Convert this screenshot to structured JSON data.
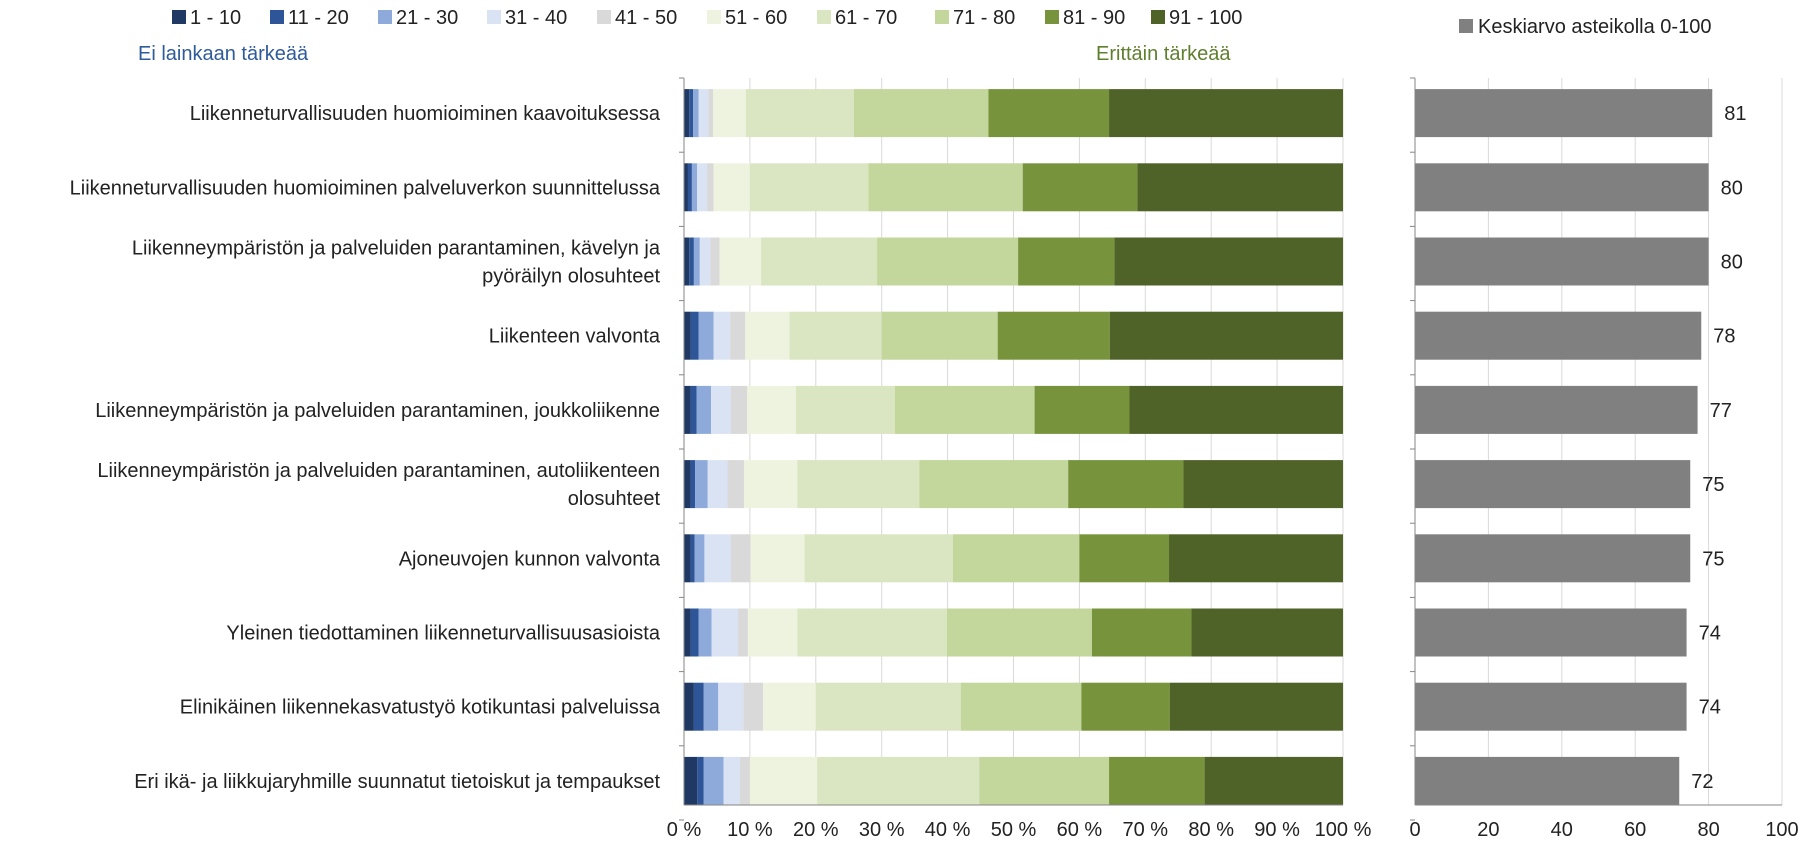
{
  "chart_data": [
    {
      "type": "bar",
      "orientation": "horizontal",
      "stacked": true,
      "percent": true,
      "categories": [
        "Liikenneturvallisuuden huomioiminen kaavoituksessa",
        "Liikenneturvallisuuden huomioiminen palveluverkon suunnittelussa",
        "Liikenneympäristön ja palveluiden parantaminen, kävelyn ja pyöräilyn olosuhteet",
        "Liikenteen valvonta",
        "Liikenneympäristön ja palveluiden parantaminen, joukkoliikenne",
        "Liikenneympäristön ja palveluiden parantaminen, autoliikenteen olosuhteet",
        "Ajoneuvojen kunnon valvonta",
        "Yleinen tiedottaminen liikenneturvallisuusasioista",
        "Elinikäinen liikennekasvatustyö kotikuntasi palveluissa",
        "Eri ikä- ja liikkujaryhmille suunnatut tietoiskut ja tempaukset"
      ],
      "category_lines": [
        [
          "Liikenneturvallisuuden huomioiminen kaavoituksessa"
        ],
        [
          "Liikenneturvallisuuden huomioiminen palveluverkon suunnittelussa"
        ],
        [
          "Liikenneympäristön ja palveluiden parantaminen, kävelyn ja",
          "pyöräilyn olosuhteet"
        ],
        [
          "Liikenteen valvonta"
        ],
        [
          "Liikenneympäristön ja palveluiden parantaminen, joukkoliikenne"
        ],
        [
          "Liikenneympäristön ja palveluiden parantaminen, autoliikenteen",
          "olosuhteet"
        ],
        [
          "Ajoneuvojen kunnon valvonta"
        ],
        [
          "Yleinen tiedottaminen liikenneturvallisuusasioista"
        ],
        [
          "Elinikäinen liikennekasvatustyö kotikuntasi palveluissa"
        ],
        [
          "Eri ikä- ja liikkujaryhmille suunnatut tietoiskut ja tempaukset"
        ]
      ],
      "series": [
        {
          "name": "1 - 10",
          "color": "#1f3864",
          "values": [
            0.8,
            0.6,
            0.8,
            1.0,
            1.0,
            1.0,
            1.0,
            1.0,
            1.5,
            2.0
          ]
        },
        {
          "name": "11 - 20",
          "color": "#2e5597",
          "values": [
            0.6,
            0.6,
            0.7,
            1.2,
            0.9,
            0.7,
            0.6,
            1.2,
            1.5,
            1.0
          ]
        },
        {
          "name": "21 - 30",
          "color": "#8eaadb",
          "values": [
            0.8,
            0.8,
            0.9,
            2.3,
            2.2,
            1.9,
            1.5,
            2.0,
            2.2,
            3.0
          ]
        },
        {
          "name": "31 - 40",
          "color": "#dae3f3",
          "values": [
            1.5,
            1.5,
            1.6,
            2.5,
            3.0,
            3.0,
            4.0,
            4.0,
            3.8,
            2.5
          ]
        },
        {
          "name": "41 - 50",
          "color": "#d9d9d9",
          "values": [
            0.7,
            1.0,
            1.4,
            2.3,
            2.5,
            2.5,
            3.0,
            1.5,
            3.0,
            1.5
          ]
        },
        {
          "name": "51 - 60",
          "color": "#eef3e0",
          "values": [
            5.0,
            5.5,
            6.3,
            6.7,
            7.4,
            8.1,
            8.2,
            7.5,
            8.0,
            10.2
          ]
        },
        {
          "name": "61 - 70",
          "color": "#dae5c2",
          "values": [
            16.4,
            18.0,
            17.6,
            14.0,
            15.0,
            18.5,
            22.5,
            22.7,
            22.0,
            24.6
          ]
        },
        {
          "name": "71 - 80",
          "color": "#c3d69b",
          "values": [
            20.4,
            23.4,
            21.4,
            17.6,
            21.2,
            22.6,
            19.2,
            22.0,
            18.3,
            19.7
          ]
        },
        {
          "name": "81 - 90",
          "color": "#77933c",
          "values": [
            18.3,
            17.4,
            14.6,
            17.0,
            14.4,
            17.5,
            13.6,
            15.1,
            13.4,
            14.5
          ]
        },
        {
          "name": "91 - 100",
          "color": "#4f6228",
          "values": [
            35.5,
            31.2,
            34.7,
            35.4,
            32.4,
            24.2,
            26.4,
            23.0,
            26.3,
            21.0
          ]
        }
      ],
      "x_ticks": [
        "0 %",
        "10 %",
        "20 %",
        "30 %",
        "40 %",
        "50 %",
        "60 %",
        "70 %",
        "80 %",
        "90 %",
        "100 %"
      ],
      "xlim": [
        0,
        100
      ],
      "grid": true,
      "legend_position": "top",
      "annotations": {
        "left": "Ei lainkaan tärkeää",
        "right": "Erittäin tärkeää"
      }
    },
    {
      "type": "bar",
      "orientation": "horizontal",
      "series": [
        {
          "name": "Keskiarvo asteikolla 0-100",
          "color": "#808080",
          "values": [
            81,
            80,
            80,
            78,
            77,
            75,
            75,
            74,
            74,
            72
          ]
        }
      ],
      "value_labels": [
        "81",
        "80",
        "80",
        "78",
        "77",
        "75",
        "75",
        "74",
        "74",
        "72"
      ],
      "x_ticks": [
        "0",
        "20",
        "40",
        "60",
        "80",
        "100"
      ],
      "xlim": [
        0,
        100
      ],
      "grid": true,
      "legend_position": "top"
    }
  ]
}
